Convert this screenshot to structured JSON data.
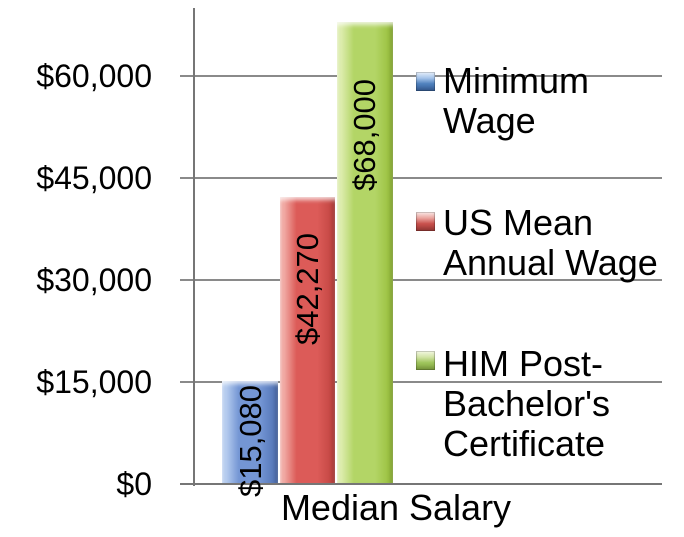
{
  "chart_data": {
    "type": "bar",
    "title": "",
    "xlabel": "Median Salary",
    "ylabel": "",
    "categories": [
      "Median Salary"
    ],
    "legend_position": "right",
    "grid": true,
    "y_axis": {
      "max": 70000,
      "gridline_values": [
        15000,
        30000,
        45000,
        60000
      ],
      "ticks": [
        {
          "label": "$0",
          "value": 0
        },
        {
          "label": "$15,000",
          "value": 15000
        },
        {
          "label": "$30,000",
          "value": 30000
        },
        {
          "label": "$45,000",
          "value": 45000
        },
        {
          "label": "$60,000",
          "value": 60000
        }
      ]
    },
    "series": [
      {
        "name": "Minimum Wage",
        "values": [
          15080
        ],
        "data_label": "$15,080",
        "legend_lines": [
          "Minimum",
          "Wage"
        ],
        "colors": {
          "light": "#b4cbee",
          "mid": "#7496d4",
          "dark": "#5274b6"
        },
        "legend_colors": [
          "#e8f0fa",
          "#a6c4ea",
          "#4f81bd",
          "#38609a"
        ]
      },
      {
        "name": "US Mean Annual Wage",
        "values": [
          42270
        ],
        "data_label": "$42,270",
        "legend_lines": [
          "US Mean",
          "Annual Wage"
        ],
        "colors": {
          "light": "#f0a8a2",
          "mid": "#dc5b58",
          "dark": "#c24642"
        },
        "legend_colors": [
          "#faeae8",
          "#eaa49e",
          "#c8504c",
          "#a03b38"
        ]
      },
      {
        "name": "HIM Post-Bachelor's Certificate",
        "values": [
          68000
        ],
        "data_label": "$68,000",
        "legend_lines": [
          "HIM Post-",
          "Bachelor's",
          "Certificate"
        ],
        "colors": {
          "light": "#dcecac",
          "mid": "#b3d566",
          "dark": "#99c03e"
        },
        "legend_colors": [
          "#f4f8e4",
          "#d2e4a6",
          "#9ec45c",
          "#82a440"
        ]
      }
    ],
    "styles": {
      "gridline_color": "#8a8a8a",
      "axis_color": "#767676",
      "text_color": "#000000",
      "background": "#ffffff"
    }
  }
}
